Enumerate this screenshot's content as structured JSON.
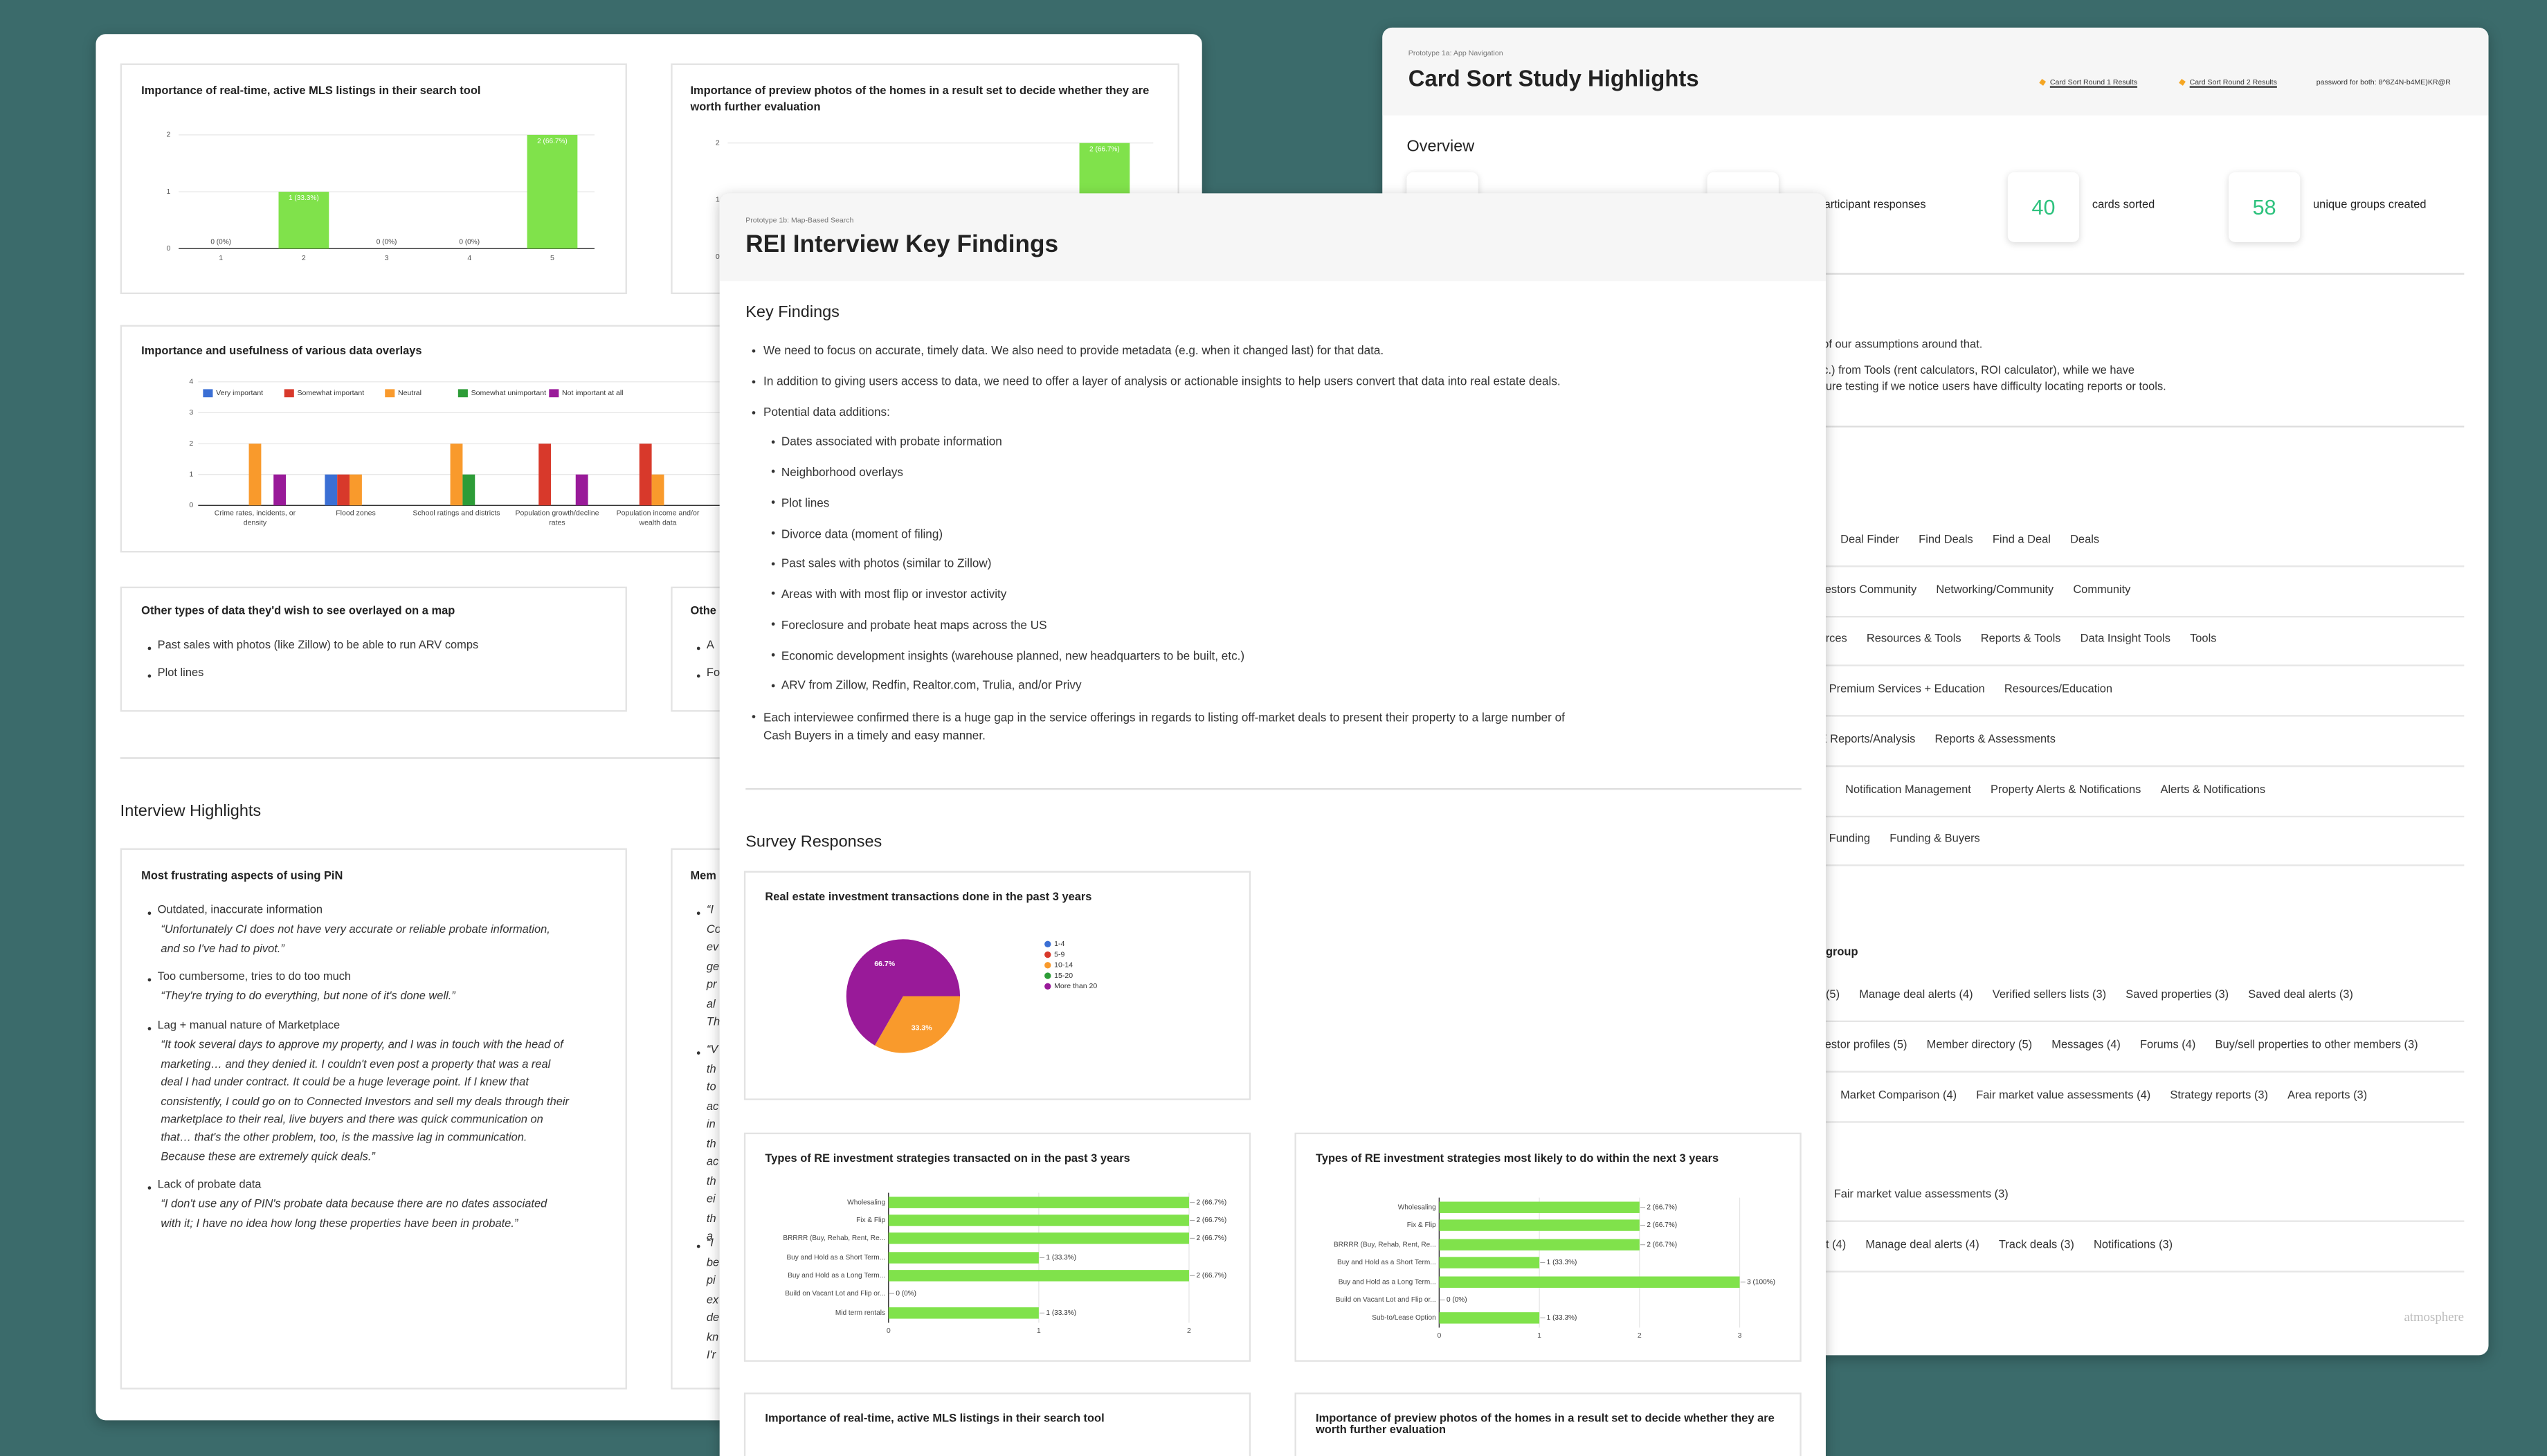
{
  "left_card": {
    "other_types": {
      "title": "Other types of data they'd wish to see overlayed on a map",
      "items": [
        "Past sales with photos (like Zillow) to be able to run ARV comps",
        "Plot lines"
      ]
    },
    "other_fragment": {
      "title": "Othe",
      "items": [
        "A",
        "Fo"
      ]
    },
    "interview_heading": "Interview Highlights",
    "frustrations": {
      "title": "Most frustrating aspects of using PiN",
      "items": [
        {
          "point": "Outdated, inaccurate information",
          "quote": [
            "“Unfortunately CI does not have very accurate or reliable probate information,",
            "and so I've had to pivot.”"
          ]
        },
        {
          "point": "Too cumbersome, tries to do too much",
          "quote": [
            "“They're trying to do everything, but none of it's done well.”"
          ]
        },
        {
          "point": "Lag + manual nature of Marketplace",
          "quote": [
            "“It took several days to approve my property, and I was in touch with the head of",
            "marketing… and they denied it. I couldn't even post a property that was a real",
            "deal I had under contract. It could be a huge leverage point. If I knew that",
            "consistently, I could go on to Connected Investors and sell my deals through their",
            "marketplace to their real, live buyers and there was quick communication on",
            "that… that's the other problem, too, is the massive lag in communication.",
            "Because these are extremely quick deals.”"
          ]
        },
        {
          "point": "Lack of probate data",
          "quote": [
            "“I don't use any of PIN's probate data because there are no dates associated",
            "with it; I have no idea how long these properties have been in probate.”"
          ]
        }
      ]
    },
    "memorable_fragment": {
      "title": "Mem",
      "groups": [
        [
          "“I",
          "Co",
          "ev",
          "ge",
          "pr",
          "al",
          "Th"
        ],
        [
          "“V",
          "th",
          "to",
          "ac",
          "in",
          "th",
          "ac",
          "th",
          "ei",
          "th",
          "a"
        ],
        [
          "“I",
          "be",
          "pi",
          "ex",
          "de",
          "kn",
          "I'r"
        ]
      ]
    }
  },
  "right_card": {
    "eyebrow": "Prototype 1a: App Navigation",
    "title": "Card Sort Study Highlights",
    "links": [
      "Card Sort Round 1 Results",
      "Card Sort Round 2 Results"
    ],
    "password": "password for both: 8^8Z4N-b4ME)KR@R",
    "overview": "Overview",
    "stats": [
      {
        "label": "articipant responses"
      },
      {
        "value": 40,
        "label": "cards sorted"
      },
      {
        "value": 58,
        "label": "unique groups created"
      }
    ],
    "notes": [
      "of our assumptions around that.",
      "c.) from Tools (rent calculators, ROI calculator), while we have",
      "ture testing if we notice users have difficulty locating reports or tools."
    ],
    "label_rows": [
      [
        "Deal Finder",
        "Find Deals",
        "Find a Deal",
        "Deals"
      ],
      [
        "vestors Community",
        "Networking/Community",
        "Community"
      ],
      [
        "urces",
        "Resources & Tools",
        "Reports & Tools",
        "Data Insight Tools",
        "Tools"
      ],
      [
        "Premium Services + Education",
        "Resources/Education"
      ],
      [
        "E Reports/Analysis",
        "Reports & Assessments"
      ],
      [
        "Notification Management",
        "Property Alerts & Notifications",
        "Alerts & Notifications"
      ],
      [
        "Funding",
        "Funding & Buyers"
      ]
    ],
    "group_heading": "group",
    "group_rows": [
      [
        "(5)",
        "Manage deal alerts (4)",
        "Verified sellers lists (3)",
        "Saved properties (3)",
        "Saved deal alerts (3)"
      ],
      [
        "vestor profiles (5)",
        "Member directory (5)",
        "Messages (4)",
        "Forums (4)",
        "Buy/sell properties to other members (3)"
      ],
      [
        "Market Comparison (4)",
        "Fair market value assessments (4)",
        "Strategy reports (3)",
        "Area reports (3)"
      ],
      [
        "Fair market value assessments (3)"
      ],
      [
        "t (4)",
        "Manage deal alerts (4)",
        "Track deals (3)",
        "Notifications (3)"
      ]
    ],
    "logo": "atmosphere"
  },
  "front_card": {
    "eyebrow": "Prototype 1b: Map-Based Search",
    "title": "REI Interview Key Findings",
    "key_findings_heading": "Key Findings",
    "findings": [
      "We need to focus on accurate, timely data. We also need to provide metadata (e.g. when it changed last) for that data.",
      "In addition to giving users access to data, we need to offer a layer of analysis or actionable insights to help users convert that data into real estate deals.",
      "Potential data additions:",
      "Each interviewee confirmed there is a huge gap in the service offerings in regards to listing off-market deals to present their property to a large number of Cash Buyers in a timely and easy manner."
    ],
    "additions": [
      "Dates associated with probate information",
      "Neighborhood overlays",
      "Plot lines",
      "Divorce data (moment of filing)",
      "Past sales with photos (similar to Zillow)",
      "Areas with with most flip or investor activity",
      "Foreclosure and probate heat maps across the US",
      "Economic development insights (warehouse planned, new headquarters to be built, etc.)",
      "ARV from Zillow, Redfin, Realtor.com, Trulia, and/or Privy"
    ],
    "survey_heading": "Survey Responses",
    "more_charts": [
      "Importance of real-time, active MLS listings in their search tool",
      "Importance of preview photos of the homes in a result set to decide whether they are worth further evaluation"
    ]
  },
  "chart_data": [
    {
      "type": "bar",
      "title": "Importance of real-time, active MLS listings in their search tool",
      "categories": [
        "1",
        "2",
        "3",
        "4",
        "5"
      ],
      "values": [
        0,
        1,
        0,
        0,
        2
      ],
      "value_labels": [
        "0 (0%)",
        "1 (33.3%)",
        "0 (0%)",
        "0 (0%)",
        "2 (66.7%)"
      ],
      "color": "#80e24b",
      "ylim": [
        0,
        2
      ],
      "yticks": [
        0,
        1,
        2
      ],
      "grid": true
    },
    {
      "type": "bar",
      "title": "Importance of preview photos of the homes in a result set to decide whether they are worth further evaluation",
      "categories": [
        null
      ],
      "values": [
        2
      ],
      "value_labels": [
        "2 (66.7%)"
      ],
      "color": "#80e24b",
      "ylim": [
        0,
        2
      ],
      "yticks": [
        0,
        1,
        2
      ],
      "grid": true
    },
    {
      "type": "grouped-bar",
      "title": "Importance and usefulness of various data overlays",
      "categories": [
        "Crime rates, incidents, or density",
        "Flood zones",
        "School ratings and districts",
        "Population growth/decline rates",
        "Population income and/or wealth data"
      ],
      "series": [
        {
          "name": "Very important",
          "color": "#3b6fd4",
          "values": [
            0,
            1,
            0,
            0,
            0
          ]
        },
        {
          "name": "Somewhat important",
          "color": "#d8392b",
          "values": [
            0,
            1,
            0,
            2,
            2
          ]
        },
        {
          "name": "Neutral",
          "color": "#f99a2c",
          "values": [
            2,
            1,
            2,
            0,
            1
          ]
        },
        {
          "name": "Somewhat unimportant",
          "color": "#2d9c37",
          "values": [
            0,
            0,
            1,
            0,
            0
          ]
        },
        {
          "name": "Not important at all",
          "color": "#991a99",
          "values": [
            1,
            0,
            0,
            1,
            0
          ]
        }
      ],
      "ylim": [
        0,
        4
      ],
      "yticks": [
        0,
        1,
        2,
        3,
        4
      ],
      "grid": true,
      "legend": "top"
    },
    {
      "type": "pie",
      "title": "Real estate investment transactions done in the past 3 years",
      "categories": [
        "1-4",
        "5-9",
        "10-14",
        "15-20",
        "More than 20"
      ],
      "values": [
        0,
        0,
        33.3,
        0,
        66.7
      ],
      "value_labels": [
        null,
        null,
        "33.3%",
        null,
        "66.7%"
      ],
      "colors": [
        "#3b6fd4",
        "#d8392b",
        "#f99a2c",
        "#2d9c37",
        "#991a99"
      ],
      "legend": "right"
    },
    {
      "type": "hbar",
      "title": "Types of RE investment strategies transacted on in the past 3 years",
      "categories": [
        "Wholesaling",
        "Fix & Flip",
        "BRRRR (Buy, Rehab, Rent, Re...",
        "Buy and Hold as a Short Term...",
        "Buy and Hold as a Long Term...",
        "Build on Vacant Lot and Flip or...",
        "Mid term rentals"
      ],
      "values": [
        2,
        2,
        2,
        1,
        2,
        0,
        1
      ],
      "value_labels": [
        "2 (66.7%)",
        "2 (66.7%)",
        "2 (66.7%)",
        "1 (33.3%)",
        "2 (66.7%)",
        "0 (0%)",
        "1 (33.3%)"
      ],
      "color": "#80e24b",
      "xlim": [
        0,
        2
      ],
      "xticks": [
        0,
        1,
        2
      ],
      "grid": true
    },
    {
      "type": "hbar",
      "title": "Types of RE investment strategies most likely to do within the next 3 years",
      "categories": [
        "Wholesaling",
        "Fix & Flip",
        "BRRRR (Buy, Rehab, Rent, Re...",
        "Buy and Hold as a Short Term...",
        "Buy and Hold as a Long Term...",
        "Build on Vacant Lot and Flip or...",
        "Sub-to/Lease Option"
      ],
      "values": [
        2,
        2,
        2,
        1,
        3,
        0,
        1
      ],
      "value_labels": [
        "2 (66.7%)",
        "2 (66.7%)",
        "2 (66.7%)",
        "1 (33.3%)",
        "3 (100%)",
        "0 (0%)",
        "1 (33.3%)"
      ],
      "color": "#80e24b",
      "xlim": [
        0,
        3
      ],
      "xticks": [
        0,
        1,
        2,
        3
      ],
      "grid": true
    }
  ]
}
